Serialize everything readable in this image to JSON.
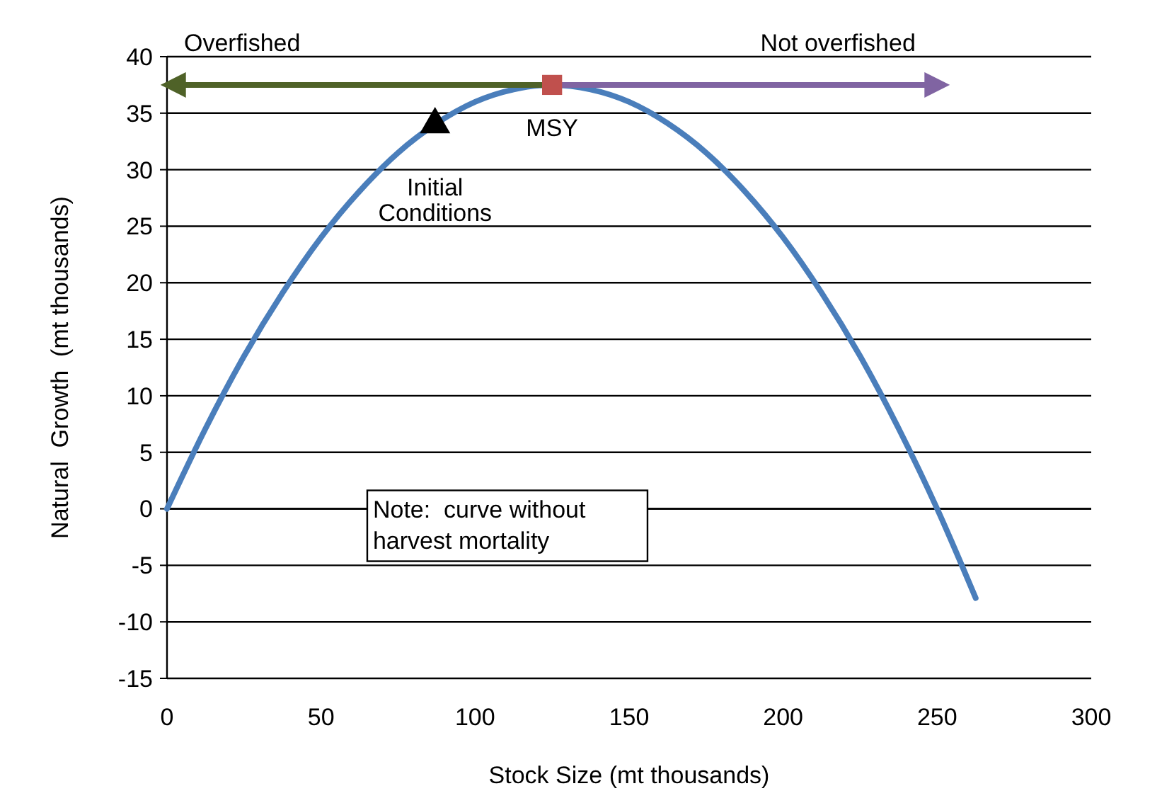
{
  "chart_data": {
    "type": "line",
    "xlabel": "Stock Size (mt thousands)",
    "ylabel": "Natural  Growth  (mt thousands)",
    "xlim": [
      0,
      300
    ],
    "ylim": [
      -15,
      40
    ],
    "xticks": [
      0,
      50,
      100,
      150,
      200,
      250,
      300
    ],
    "yticks": [
      -15,
      -10,
      -5,
      0,
      5,
      10,
      15,
      20,
      25,
      30,
      35,
      40
    ],
    "grid": "y",
    "series": [
      {
        "color": "#4a7ebb",
        "marker": "none",
        "x": [
          0,
          12.5,
          25,
          37.5,
          50,
          62.5,
          75,
          87.5,
          100,
          112.5,
          125,
          137.5,
          150,
          162.5,
          175,
          187.5,
          200,
          212.5,
          225,
          237.5,
          250,
          262.5
        ],
        "values": [
          0,
          7.1,
          13.5,
          19.1,
          24,
          28.1,
          31.5,
          34.1,
          36,
          37.1,
          37.5,
          37.1,
          36,
          34.1,
          31.5,
          28.1,
          24,
          19.1,
          13.5,
          7.1,
          0,
          -7.9
        ]
      },
      {
        "type": "line",
        "color": "#4f6228",
        "marker": "none",
        "x": [
          125,
          2
        ],
        "values": [
          37.5,
          37.5
        ]
      },
      {
        "type": "line",
        "color": "#8064a2",
        "marker": "none",
        "x": [
          125,
          250
        ],
        "values": [
          37.5,
          37.5
        ]
      },
      {
        "type": "scatter",
        "name": "Initial Conditions",
        "color": "#000000",
        "marker": "triangle",
        "x": [
          87
        ],
        "values": [
          34
        ]
      },
      {
        "type": "scatter",
        "name": "MSY",
        "color": "#c0504d",
        "marker": "square",
        "x": [
          125
        ],
        "values": [
          37.5
        ]
      }
    ],
    "annotations": [
      "Overfished",
      "Not overfished",
      "Note:  curve without harvest mortality"
    ]
  }
}
